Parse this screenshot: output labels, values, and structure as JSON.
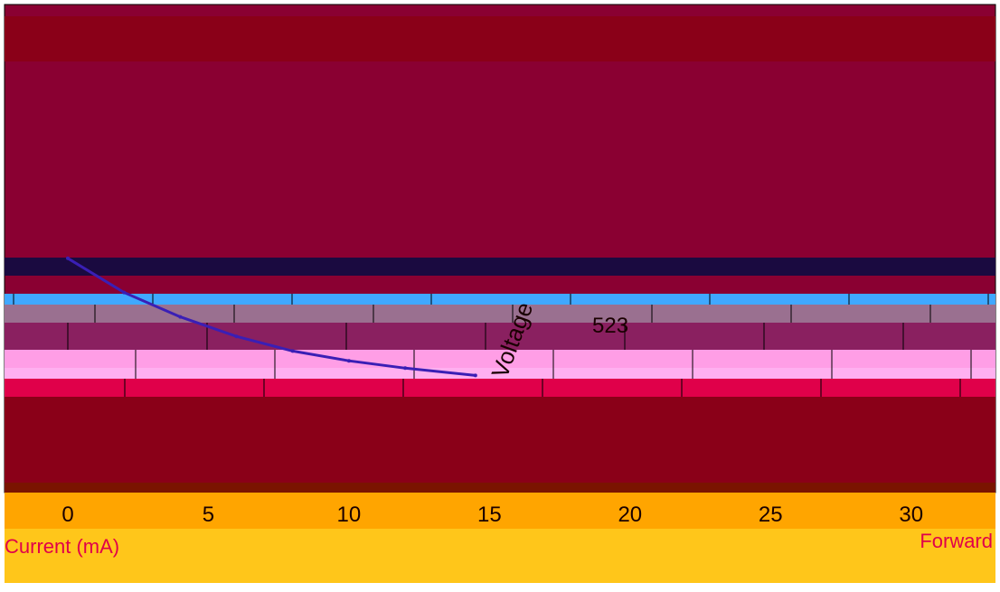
{
  "colors": {
    "page_bg": "#ffffff",
    "plot_bg": "#8a0032",
    "band_top": "#e60073",
    "band_blue": "#40a8ff",
    "band_purple": "#8a2060",
    "band_pink": "#ff9ee6",
    "band_red": "#e0004a",
    "band_bottom": "#8a0018",
    "axis_band": "#ffa500",
    "label_band": "#ffc61a",
    "line_color": "#3a1fb5",
    "text_color": "#1a0000",
    "grid_color": "#000000"
  },
  "chart_data": {
    "type": "line",
    "title": "",
    "xlabel": "Current (mA)",
    "xlabel_right": "Forward",
    "ylabel": "Voltage",
    "xlim": [
      0,
      33
    ],
    "ylim": [
      0,
      1
    ],
    "x_ticks": [
      0,
      5,
      10,
      15,
      20,
      25,
      30
    ],
    "x_tick_labels": [
      "0",
      "5",
      "10",
      "15",
      "20",
      "25",
      "30"
    ],
    "annotation": "523",
    "series": [
      {
        "name": "",
        "x": [
          0,
          2,
          4,
          6,
          8,
          10,
          12,
          14.5
        ],
        "y": [
          0.48,
          0.41,
          0.36,
          0.32,
          0.29,
          0.27,
          0.255,
          0.24
        ]
      }
    ]
  }
}
